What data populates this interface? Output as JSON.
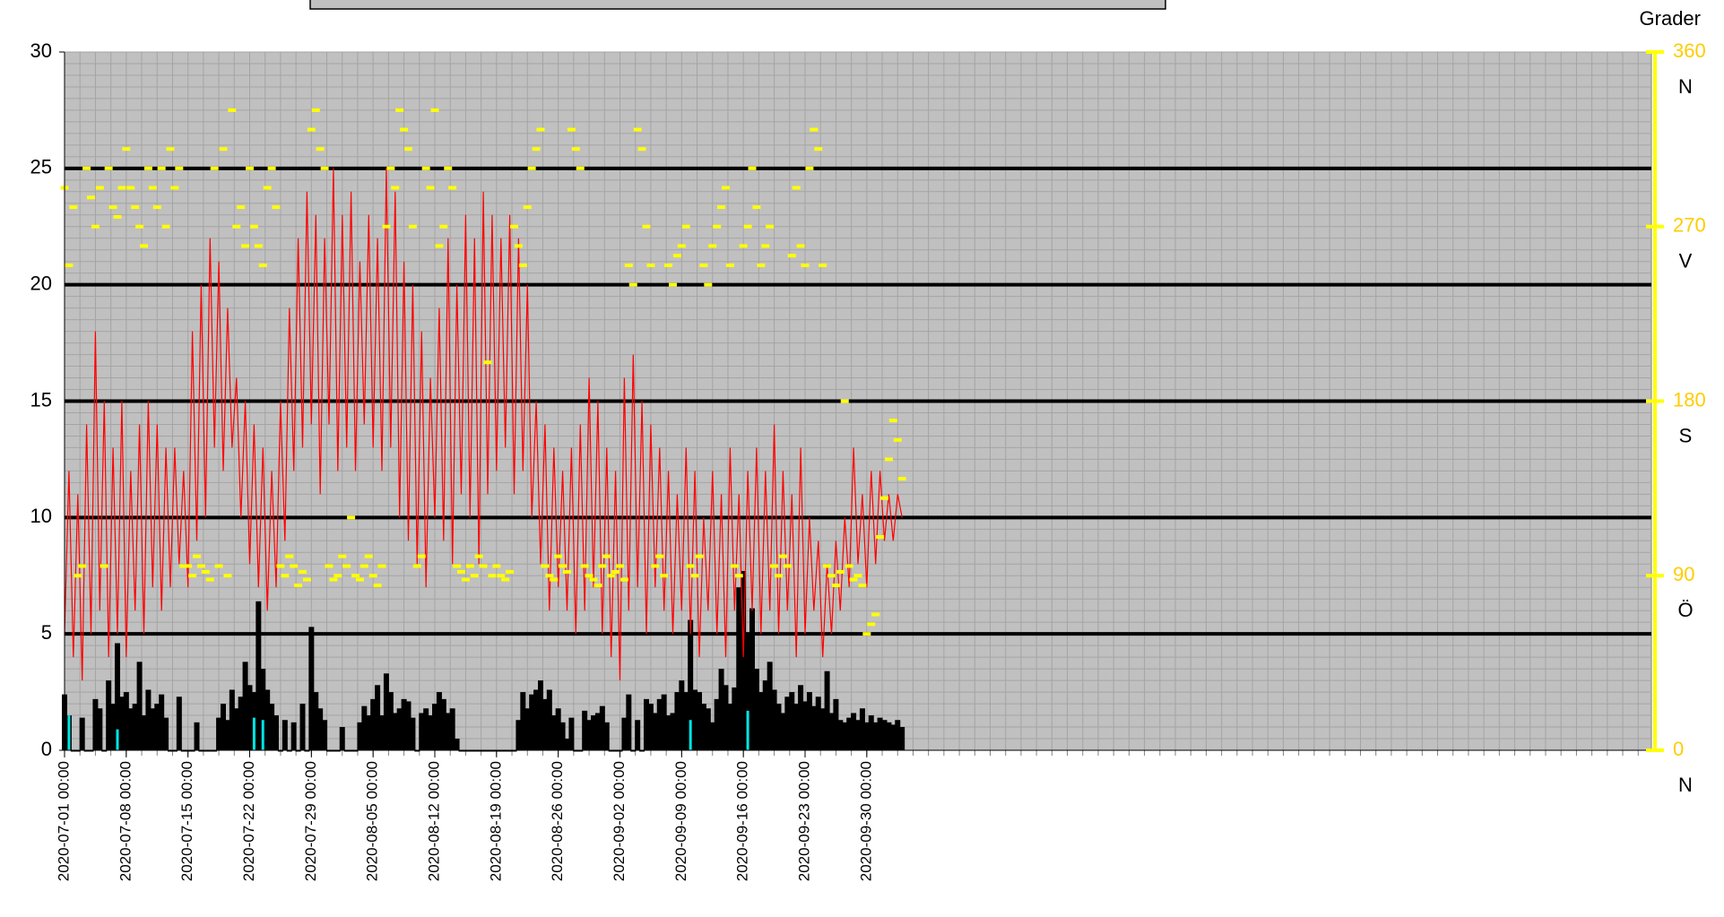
{
  "chart_data": {
    "type": "combo",
    "y2label": "Grader",
    "xlim": [
      "2020-07-01 00:00",
      "2020-12-28 00:00"
    ],
    "xticks": [
      "2020-07-01 00:00",
      "2020-07-08 00:00",
      "2020-07-15 00:00",
      "2020-07-22 00:00",
      "2020-07-29 00:00",
      "2020-08-05 00:00",
      "2020-08-12 00:00",
      "2020-08-19 00:00",
      "2020-08-26 00:00",
      "2020-09-02 00:00",
      "2020-09-09 00:00",
      "2020-09-16 00:00",
      "2020-09-23 00:00",
      "2020-09-30 00:00"
    ],
    "ylim": [
      0,
      30
    ],
    "yticks": [
      0,
      5,
      10,
      15,
      20,
      25,
      30
    ],
    "y2lim": [
      0,
      360
    ],
    "y2ticks": [
      0,
      90,
      180,
      270,
      360
    ],
    "y2tick_names": [
      {
        "value": 0,
        "label": "N"
      },
      {
        "value": 90,
        "label": "Ö"
      },
      {
        "value": 180,
        "label": "S"
      },
      {
        "value": 270,
        "label": "V"
      },
      {
        "value": 360,
        "label": "N"
      }
    ],
    "grid": true,
    "x": [
      "2020-07-01 00:00",
      "2020-07-01 12:00",
      "2020-07-02 00:00",
      "2020-07-02 12:00",
      "2020-07-03 00:00",
      "2020-07-03 12:00",
      "2020-07-04 00:00",
      "2020-07-04 12:00",
      "2020-07-05 00:00",
      "2020-07-05 12:00",
      "2020-07-06 00:00",
      "2020-07-06 12:00",
      "2020-07-07 00:00",
      "2020-07-07 12:00",
      "2020-07-08 00:00",
      "2020-07-08 12:00",
      "2020-07-09 00:00",
      "2020-07-09 12:00",
      "2020-07-10 00:00",
      "2020-07-10 12:00",
      "2020-07-11 00:00",
      "2020-07-11 12:00",
      "2020-07-12 00:00",
      "2020-07-12 12:00",
      "2020-07-13 00:00",
      "2020-07-13 12:00",
      "2020-07-14 00:00",
      "2020-07-14 12:00",
      "2020-07-15 00:00",
      "2020-07-15 12:00",
      "2020-07-16 00:00",
      "2020-07-16 12:00",
      "2020-07-17 00:00",
      "2020-07-17 12:00",
      "2020-07-18 00:00",
      "2020-07-18 12:00",
      "2020-07-19 00:00",
      "2020-07-19 12:00",
      "2020-07-20 00:00",
      "2020-07-20 12:00",
      "2020-07-21 00:00",
      "2020-07-21 12:00",
      "2020-07-22 00:00",
      "2020-07-22 12:00",
      "2020-07-23 00:00",
      "2020-07-23 12:00",
      "2020-07-24 00:00",
      "2020-07-24 12:00",
      "2020-07-25 00:00",
      "2020-07-25 12:00",
      "2020-07-26 00:00",
      "2020-07-26 12:00",
      "2020-07-27 00:00",
      "2020-07-27 12:00",
      "2020-07-28 00:00",
      "2020-07-28 12:00",
      "2020-07-29 00:00",
      "2020-07-29 12:00",
      "2020-07-30 00:00",
      "2020-07-30 12:00",
      "2020-07-31 00:00",
      "2020-07-31 12:00",
      "2020-08-01 00:00",
      "2020-08-01 12:00",
      "2020-08-02 00:00",
      "2020-08-02 12:00",
      "2020-08-03 00:00",
      "2020-08-03 12:00",
      "2020-08-04 00:00",
      "2020-08-04 12:00",
      "2020-08-05 00:00",
      "2020-08-05 12:00",
      "2020-08-06 00:00",
      "2020-08-06 12:00",
      "2020-08-07 00:00",
      "2020-08-07 12:00",
      "2020-08-08 00:00",
      "2020-08-08 12:00",
      "2020-08-09 00:00",
      "2020-08-09 12:00",
      "2020-08-10 00:00",
      "2020-08-10 12:00",
      "2020-08-11 00:00",
      "2020-08-11 12:00",
      "2020-08-12 00:00",
      "2020-08-12 12:00",
      "2020-08-13 00:00",
      "2020-08-13 12:00",
      "2020-08-14 00:00",
      "2020-08-14 12:00",
      "2020-08-15 00:00",
      "2020-08-15 12:00",
      "2020-08-16 00:00",
      "2020-08-16 12:00",
      "2020-08-17 00:00",
      "2020-08-17 12:00",
      "2020-08-18 00:00",
      "2020-08-18 12:00",
      "2020-08-19 00:00",
      "2020-08-19 12:00",
      "2020-08-20 00:00",
      "2020-08-20 12:00",
      "2020-08-21 00:00",
      "2020-08-21 12:00",
      "2020-08-22 00:00",
      "2020-08-22 12:00",
      "2020-08-23 00:00",
      "2020-08-23 12:00",
      "2020-08-24 00:00",
      "2020-08-24 12:00",
      "2020-08-25 00:00",
      "2020-08-25 12:00",
      "2020-08-26 00:00",
      "2020-08-26 12:00",
      "2020-08-27 00:00",
      "2020-08-27 12:00",
      "2020-08-28 00:00",
      "2020-08-28 12:00",
      "2020-08-29 00:00",
      "2020-08-29 12:00",
      "2020-08-30 00:00",
      "2020-08-30 12:00",
      "2020-08-31 00:00",
      "2020-08-31 12:00",
      "2020-09-01 00:00",
      "2020-09-01 12:00",
      "2020-09-02 00:00",
      "2020-09-02 12:00",
      "2020-09-03 00:00",
      "2020-09-03 12:00",
      "2020-09-04 00:00",
      "2020-09-04 12:00",
      "2020-09-05 00:00",
      "2020-09-05 12:00",
      "2020-09-06 00:00",
      "2020-09-06 12:00",
      "2020-09-07 00:00",
      "2020-09-07 12:00",
      "2020-09-08 00:00",
      "2020-09-08 12:00",
      "2020-09-09 00:00",
      "2020-09-09 12:00",
      "2020-09-10 00:00",
      "2020-09-10 12:00",
      "2020-09-11 00:00",
      "2020-09-11 12:00",
      "2020-09-12 00:00",
      "2020-09-12 12:00",
      "2020-09-13 00:00",
      "2020-09-13 12:00",
      "2020-09-14 00:00",
      "2020-09-14 12:00",
      "2020-09-15 00:00",
      "2020-09-15 12:00",
      "2020-09-16 00:00",
      "2020-09-16 12:00",
      "2020-09-17 00:00",
      "2020-09-17 12:00",
      "2020-09-18 00:00",
      "2020-09-18 12:00",
      "2020-09-19 00:00",
      "2020-09-19 12:00",
      "2020-09-20 00:00",
      "2020-09-20 12:00",
      "2020-09-21 00:00",
      "2020-09-21 12:00",
      "2020-09-22 00:00",
      "2020-09-22 12:00",
      "2020-09-23 00:00",
      "2020-09-23 12:00",
      "2020-09-24 00:00",
      "2020-09-24 12:00",
      "2020-09-25 00:00",
      "2020-09-25 12:00",
      "2020-09-26 00:00",
      "2020-09-26 12:00",
      "2020-09-27 00:00",
      "2020-09-27 12:00",
      "2020-09-28 00:00",
      "2020-09-28 12:00",
      "2020-09-29 00:00",
      "2020-09-29 12:00",
      "2020-09-30 00:00",
      "2020-09-30 12:00",
      "2020-10-01 00:00",
      "2020-10-01 12:00",
      "2020-10-02 00:00",
      "2020-10-02 12:00",
      "2020-10-03 00:00",
      "2020-10-03 12:00",
      "2020-10-04 00:00"
    ],
    "series": [
      {
        "type": "line",
        "color": "#ff0000",
        "values": [
          5,
          12,
          4,
          11,
          3,
          14,
          5,
          18,
          6,
          15,
          4,
          13,
          5,
          15,
          4,
          12,
          6,
          14,
          5,
          15,
          7,
          14,
          6,
          13,
          7,
          13,
          8,
          12,
          7,
          18,
          9,
          20,
          10,
          22,
          13,
          21,
          12,
          19,
          13,
          16,
          10,
          15,
          8,
          14,
          7,
          13,
          6,
          12,
          7,
          15,
          9,
          19,
          12,
          22,
          13,
          24,
          14,
          23,
          11,
          22,
          14,
          25,
          12,
          23,
          13,
          24,
          12,
          21,
          14,
          23,
          13,
          22,
          12,
          25,
          13,
          24,
          10,
          21,
          9,
          20,
          8,
          18,
          7,
          16,
          10,
          19,
          9,
          22,
          8,
          20,
          11,
          23,
          10,
          22,
          8,
          24,
          11,
          23,
          12,
          22,
          13,
          23,
          11,
          22,
          12,
          20,
          10,
          15,
          8,
          14,
          6,
          13,
          7,
          12,
          6,
          13,
          5,
          14,
          6,
          16,
          7,
          15,
          5,
          13,
          4,
          12,
          3,
          16,
          6,
          17,
          7,
          15,
          5,
          14,
          7,
          13,
          6,
          12,
          5,
          11,
          6,
          13,
          5,
          12,
          4,
          10,
          6,
          12,
          5,
          11,
          4,
          13,
          6,
          11,
          4,
          12,
          6,
          13,
          5,
          12,
          6,
          14,
          5,
          12,
          6,
          11,
          4,
          13,
          5,
          10,
          6,
          9,
          4,
          8,
          5,
          9,
          6,
          10,
          7,
          13,
          8,
          11,
          7,
          12,
          8,
          12,
          9,
          11,
          9,
          11,
          10
        ]
      },
      {
        "type": "bar",
        "color": "#000000",
        "values": [
          2.4,
          1.5,
          0,
          0,
          1.4,
          0,
          0,
          2.2,
          1.8,
          0,
          3.0,
          2.0,
          4.6,
          2.3,
          2.5,
          1.8,
          2.0,
          3.8,
          1.5,
          2.6,
          1.8,
          2.0,
          2.4,
          1.4,
          0,
          0,
          2.3,
          0,
          0,
          0,
          1.2,
          0,
          0,
          0,
          0,
          1.4,
          2.0,
          1.3,
          2.6,
          1.8,
          2.3,
          3.8,
          2.8,
          2.5,
          6.4,
          3.5,
          2.6,
          2.0,
          1.5,
          0,
          1.3,
          0,
          1.2,
          0,
          2.0,
          0,
          5.3,
          2.5,
          1.8,
          1.3,
          0,
          0,
          0,
          1.0,
          0,
          0,
          0,
          1.2,
          1.9,
          1.5,
          2.2,
          2.8,
          1.5,
          3.3,
          2.5,
          1.6,
          1.8,
          2.2,
          2.1,
          1.4,
          0,
          1.6,
          1.8,
          1.5,
          2.0,
          2.5,
          2.2,
          1.6,
          1.8,
          0.5,
          0,
          0,
          0,
          0,
          0,
          0,
          0,
          0,
          0,
          0,
          0,
          0,
          0,
          1.3,
          2.5,
          1.8,
          2.4,
          2.6,
          3.0,
          2.2,
          2.6,
          1.5,
          1.8,
          1.2,
          0.5,
          1.4,
          0,
          0,
          1.7,
          1.3,
          1.5,
          1.6,
          1.9,
          1.2,
          0,
          0,
          0,
          1.4,
          2.4,
          0,
          1.3,
          0,
          2.2,
          2.0,
          1.6,
          2.2,
          2.4,
          1.5,
          1.6,
          2.5,
          3.0,
          2.5,
          5.6,
          2.6,
          2.5,
          2.0,
          1.8,
          1.2,
          2.2,
          3.5,
          2.8,
          2.0,
          2.7,
          7.0,
          7.7,
          5.0,
          6.1,
          3.5,
          2.5,
          3.0,
          3.8,
          2.6,
          2.0,
          1.6,
          2.3,
          2.5,
          2.0,
          2.8,
          2.1,
          2.5,
          1.9,
          2.3,
          1.8,
          3.4,
          1.6,
          2.2,
          1.3,
          1.2,
          1.4,
          1.6,
          1.3,
          1.8,
          1.2,
          1.5,
          1.2,
          1.4,
          1.3,
          1.2,
          1.1,
          1.3,
          1.0
        ]
      },
      {
        "type": "bar",
        "color": "#00e5e5",
        "x": [
          "2020-07-01 12:00",
          "2020-07-07 00:00",
          "2020-07-22 12:00",
          "2020-07-23 12:00",
          "2020-09-10 00:00",
          "2020-09-16 12:00"
        ],
        "values": [
          1.5,
          0.9,
          1.4,
          1.3,
          1.3,
          1.7
        ]
      },
      {
        "type": "scatter",
        "color": "#ffff00",
        "axis": "y2",
        "values": [
          290,
          250,
          280,
          90,
          95,
          300,
          285,
          270,
          290,
          95,
          300,
          280,
          275,
          290,
          310,
          290,
          280,
          270,
          260,
          300,
          290,
          280,
          300,
          270,
          310,
          290,
          300,
          95,
          95,
          90,
          100,
          95,
          92,
          88,
          300,
          95,
          310,
          90,
          330,
          270,
          280,
          260,
          300,
          270,
          260,
          250,
          290,
          300,
          280,
          95,
          90,
          100,
          95,
          85,
          92,
          88,
          320,
          330,
          310,
          300,
          95,
          88,
          90,
          100,
          95,
          120,
          90,
          88,
          95,
          100,
          90,
          85,
          95,
          270,
          300,
          290,
          330,
          320,
          310,
          270,
          95,
          100,
          300,
          290,
          330,
          260,
          270,
          300,
          290,
          95,
          92,
          88,
          95,
          90,
          100,
          95,
          200,
          90,
          95,
          90,
          88,
          92,
          270,
          260,
          250,
          280,
          300,
          310,
          320,
          95,
          90,
          88,
          100,
          95,
          92,
          320,
          310,
          300,
          95,
          90,
          88,
          85,
          95,
          100,
          90,
          92,
          95,
          88,
          250,
          240,
          320,
          310,
          270,
          250,
          95,
          100,
          90,
          250,
          240,
          255,
          260,
          270,
          95,
          90,
          100,
          250,
          240,
          260,
          270,
          280,
          290,
          250,
          95,
          90,
          260,
          270,
          300,
          280,
          250,
          260,
          270,
          95,
          90,
          100,
          95,
          255,
          290,
          260,
          250,
          300,
          320,
          310,
          250,
          95,
          90,
          85,
          92,
          180,
          95,
          88,
          90,
          85,
          60,
          65,
          70,
          110,
          130,
          150,
          170,
          160,
          140
        ]
      }
    ]
  }
}
